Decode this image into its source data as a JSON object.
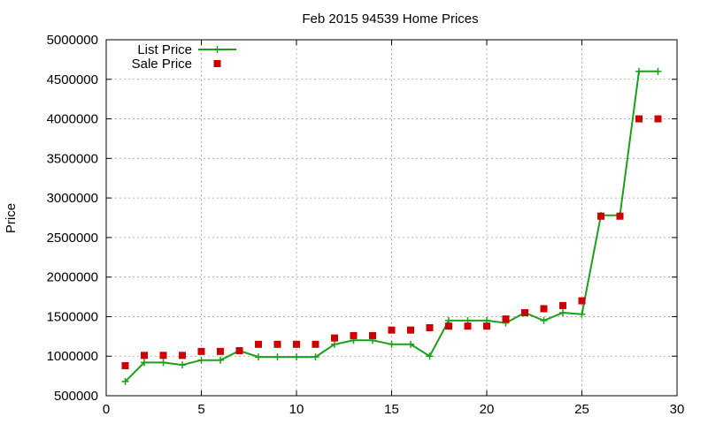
{
  "chart_data": {
    "type": "line",
    "title": "Feb 2015 94539 Home Prices",
    "xlabel": "",
    "ylabel": "Price",
    "xlim": [
      0,
      30
    ],
    "ylim": [
      500000,
      5000000
    ],
    "x_ticks": [
      0,
      5,
      10,
      15,
      20,
      25,
      30
    ],
    "y_ticks": [
      500000,
      1000000,
      1500000,
      2000000,
      2500000,
      3000000,
      3500000,
      4000000,
      4500000,
      5000000
    ],
    "grid": true,
    "legend_position": "top-left",
    "series": [
      {
        "name": "List Price",
        "style": "line-plus",
        "color": "#1aa01a",
        "x": [
          1,
          2,
          3,
          4,
          5,
          6,
          7,
          8,
          9,
          10,
          11,
          12,
          13,
          14,
          15,
          16,
          17,
          18,
          19,
          20,
          21,
          22,
          23,
          24,
          25,
          26,
          27,
          28,
          29
        ],
        "values": [
          680000,
          920000,
          920000,
          890000,
          950000,
          950000,
          1070000,
          990000,
          990000,
          990000,
          990000,
          1150000,
          1200000,
          1200000,
          1150000,
          1150000,
          1000000,
          1450000,
          1450000,
          1450000,
          1420000,
          1550000,
          1450000,
          1550000,
          1530000,
          2780000,
          2780000,
          4600000,
          4600000
        ]
      },
      {
        "name": "Sale Price",
        "style": "square",
        "color": "#cc0000",
        "x": [
          1,
          2,
          3,
          4,
          5,
          6,
          7,
          8,
          9,
          10,
          11,
          12,
          13,
          14,
          15,
          16,
          17,
          18,
          19,
          20,
          21,
          22,
          23,
          24,
          25,
          26,
          27,
          28,
          29
        ],
        "values": [
          880000,
          1010000,
          1010000,
          1010000,
          1060000,
          1060000,
          1070000,
          1150000,
          1150000,
          1150000,
          1150000,
          1230000,
          1260000,
          1260000,
          1330000,
          1330000,
          1360000,
          1380000,
          1380000,
          1380000,
          1470000,
          1550000,
          1600000,
          1640000,
          1700000,
          2770000,
          2770000,
          4000000,
          4000000
        ]
      }
    ]
  }
}
